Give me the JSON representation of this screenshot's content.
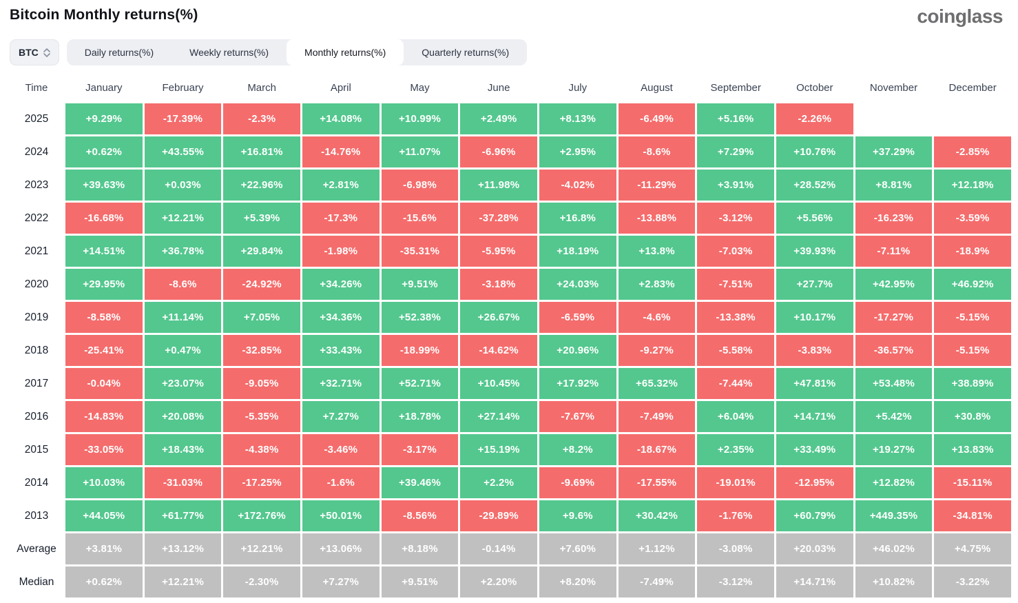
{
  "page": {
    "title": "Bitcoin Monthly returns(%)",
    "logo": "coinglass"
  },
  "controls": {
    "symbol": "BTC",
    "tabs": [
      "Daily returns(%)",
      "Weekly returns(%)",
      "Monthly returns(%)",
      "Quarterly returns(%)"
    ],
    "active_tab_index": 2
  },
  "colors": {
    "positive": "#53c78e",
    "negative": "#f56c6c",
    "summary": "#c0c0c0"
  },
  "chart_data": {
    "type": "heatmap",
    "title": "Bitcoin Monthly returns(%)",
    "time_label": "Time",
    "categories": [
      "January",
      "February",
      "March",
      "April",
      "May",
      "June",
      "July",
      "August",
      "September",
      "October",
      "November",
      "December"
    ],
    "rows": [
      {
        "label": "2025",
        "summary": false,
        "values": [
          "+9.29%",
          "-17.39%",
          "-2.3%",
          "+14.08%",
          "+10.99%",
          "+2.49%",
          "+8.13%",
          "-6.49%",
          "+5.16%",
          "-2.26%",
          null,
          null
        ]
      },
      {
        "label": "2024",
        "summary": false,
        "values": [
          "+0.62%",
          "+43.55%",
          "+16.81%",
          "-14.76%",
          "+11.07%",
          "-6.96%",
          "+2.95%",
          "-8.6%",
          "+7.29%",
          "+10.76%",
          "+37.29%",
          "-2.85%"
        ]
      },
      {
        "label": "2023",
        "summary": false,
        "values": [
          "+39.63%",
          "+0.03%",
          "+22.96%",
          "+2.81%",
          "-6.98%",
          "+11.98%",
          "-4.02%",
          "-11.29%",
          "+3.91%",
          "+28.52%",
          "+8.81%",
          "+12.18%"
        ]
      },
      {
        "label": "2022",
        "summary": false,
        "values": [
          "-16.68%",
          "+12.21%",
          "+5.39%",
          "-17.3%",
          "-15.6%",
          "-37.28%",
          "+16.8%",
          "-13.88%",
          "-3.12%",
          "+5.56%",
          "-16.23%",
          "-3.59%"
        ]
      },
      {
        "label": "2021",
        "summary": false,
        "values": [
          "+14.51%",
          "+36.78%",
          "+29.84%",
          "-1.98%",
          "-35.31%",
          "-5.95%",
          "+18.19%",
          "+13.8%",
          "-7.03%",
          "+39.93%",
          "-7.11%",
          "-18.9%"
        ]
      },
      {
        "label": "2020",
        "summary": false,
        "values": [
          "+29.95%",
          "-8.6%",
          "-24.92%",
          "+34.26%",
          "+9.51%",
          "-3.18%",
          "+24.03%",
          "+2.83%",
          "-7.51%",
          "+27.7%",
          "+42.95%",
          "+46.92%"
        ]
      },
      {
        "label": "2019",
        "summary": false,
        "values": [
          "-8.58%",
          "+11.14%",
          "+7.05%",
          "+34.36%",
          "+52.38%",
          "+26.67%",
          "-6.59%",
          "-4.6%",
          "-13.38%",
          "+10.17%",
          "-17.27%",
          "-5.15%"
        ]
      },
      {
        "label": "2018",
        "summary": false,
        "values": [
          "-25.41%",
          "+0.47%",
          "-32.85%",
          "+33.43%",
          "-18.99%",
          "-14.62%",
          "+20.96%",
          "-9.27%",
          "-5.58%",
          "-3.83%",
          "-36.57%",
          "-5.15%"
        ]
      },
      {
        "label": "2017",
        "summary": false,
        "values": [
          "-0.04%",
          "+23.07%",
          "-9.05%",
          "+32.71%",
          "+52.71%",
          "+10.45%",
          "+17.92%",
          "+65.32%",
          "-7.44%",
          "+47.81%",
          "+53.48%",
          "+38.89%"
        ]
      },
      {
        "label": "2016",
        "summary": false,
        "values": [
          "-14.83%",
          "+20.08%",
          "-5.35%",
          "+7.27%",
          "+18.78%",
          "+27.14%",
          "-7.67%",
          "-7.49%",
          "+6.04%",
          "+14.71%",
          "+5.42%",
          "+30.8%"
        ]
      },
      {
        "label": "2015",
        "summary": false,
        "values": [
          "-33.05%",
          "+18.43%",
          "-4.38%",
          "-3.46%",
          "-3.17%",
          "+15.19%",
          "+8.2%",
          "-18.67%",
          "+2.35%",
          "+33.49%",
          "+19.27%",
          "+13.83%"
        ]
      },
      {
        "label": "2014",
        "summary": false,
        "values": [
          "+10.03%",
          "-31.03%",
          "-17.25%",
          "-1.6%",
          "+39.46%",
          "+2.2%",
          "-9.69%",
          "-17.55%",
          "-19.01%",
          "-12.95%",
          "+12.82%",
          "-15.11%"
        ]
      },
      {
        "label": "2013",
        "summary": false,
        "values": [
          "+44.05%",
          "+61.77%",
          "+172.76%",
          "+50.01%",
          "-8.56%",
          "-29.89%",
          "+9.6%",
          "+30.42%",
          "-1.76%",
          "+60.79%",
          "+449.35%",
          "-34.81%"
        ]
      },
      {
        "label": "Average",
        "summary": true,
        "values": [
          "+3.81%",
          "+13.12%",
          "+12.21%",
          "+13.06%",
          "+8.18%",
          "-0.14%",
          "+7.60%",
          "+1.12%",
          "-3.08%",
          "+20.03%",
          "+46.02%",
          "+4.75%"
        ]
      },
      {
        "label": "Median",
        "summary": true,
        "values": [
          "+0.62%",
          "+12.21%",
          "-2.30%",
          "+7.27%",
          "+9.51%",
          "+2.20%",
          "+8.20%",
          "-7.49%",
          "-3.12%",
          "+14.71%",
          "+10.82%",
          "-3.22%"
        ]
      }
    ]
  }
}
